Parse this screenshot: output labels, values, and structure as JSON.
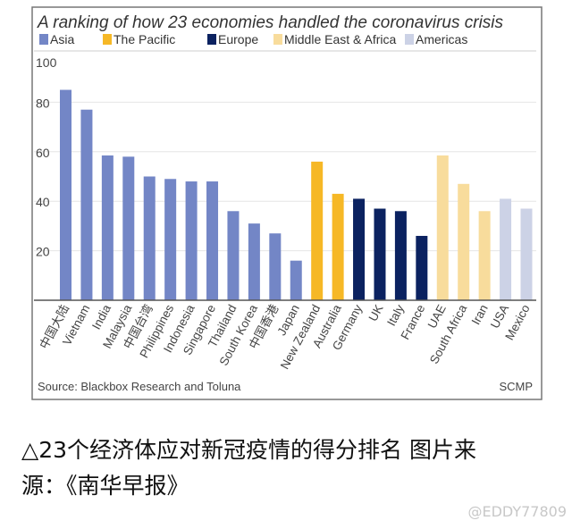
{
  "chart_data": {
    "type": "bar",
    "title": "A ranking of how 23 economies handled the coronavirus crisis",
    "xlabel": "",
    "ylabel": "",
    "ylim": [
      0,
      100
    ],
    "yticks": [
      20,
      40,
      60,
      80,
      100
    ],
    "grid": true,
    "legend_position": "top",
    "legend": [
      {
        "name": "Asia",
        "color": "#7386c6"
      },
      {
        "name": "The Pacific",
        "color": "#f6b826"
      },
      {
        "name": "Europe",
        "color": "#0b2260"
      },
      {
        "name": "Middle East & Africa",
        "color": "#f8dc9c"
      },
      {
        "name": "Americas",
        "color": "#ccd2e6"
      }
    ],
    "categories": [
      "中国大陆",
      "Vietnam",
      "India",
      "Malaysia",
      "中国台湾",
      "Philippines",
      "Indonesia",
      "Singapore",
      "Thailand",
      "South Korea",
      "中国香港",
      "Japan",
      "New Zealand",
      "Australia",
      "Germany",
      "UK",
      "Italy",
      "France",
      "UAE",
      "South Africa",
      "Iran",
      "USA",
      "Mexico"
    ],
    "groups": [
      0,
      0,
      0,
      0,
      0,
      0,
      0,
      0,
      0,
      0,
      0,
      0,
      1,
      1,
      2,
      2,
      2,
      2,
      3,
      3,
      3,
      4,
      4
    ],
    "values": [
      85,
      77,
      58.5,
      58,
      50,
      49,
      48,
      48,
      36,
      31,
      27,
      16,
      56,
      43,
      41,
      37,
      36,
      26,
      58.5,
      47,
      36,
      41,
      37
    ],
    "source": "Source: Blackbox Research and Toluna",
    "credit": "SCMP"
  },
  "caption": {
    "line1": "△23个经济体应对新冠疫情的得分排名 图片来",
    "line2": "源：《南华早报》"
  },
  "watermark": "@EDDY77809"
}
